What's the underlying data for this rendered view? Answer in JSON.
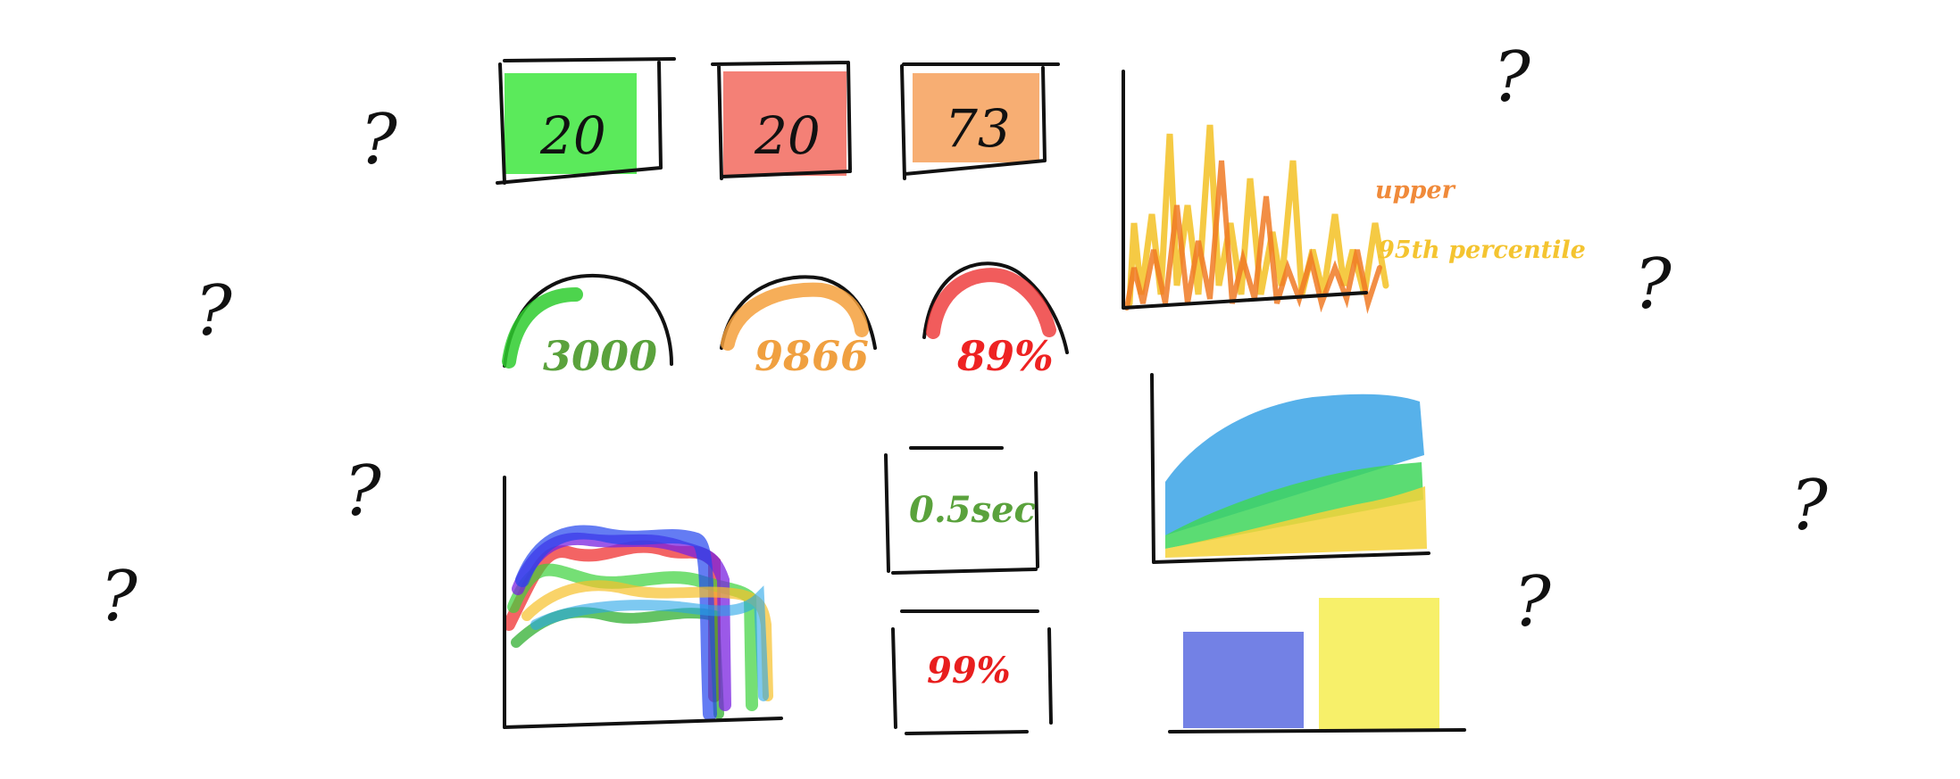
{
  "question_marks": [
    "?",
    "?",
    "?",
    "?",
    "?",
    "?",
    "?",
    "?",
    "?",
    "?"
  ],
  "tiles": [
    {
      "value": "20",
      "color": "#3ee63e"
    },
    {
      "value": "20",
      "color": "#f26a5e"
    },
    {
      "value": "73",
      "color": "#f6a05a"
    }
  ],
  "gauges": [
    {
      "value": "3000",
      "color": "#2ecc2e",
      "text_color": "#5aa23c"
    },
    {
      "value": "9866",
      "color": "#f4a03c",
      "text_color": "#f0a040"
    },
    {
      "value": "89%",
      "color": "#ee3333",
      "text_color": "#ee2222"
    }
  ],
  "stats": [
    {
      "value": "0.5sec",
      "text_color": "#5aa23c"
    },
    {
      "value": "99%",
      "text_color": "#e81e1e"
    }
  ],
  "legend": {
    "upper": {
      "label": "upper",
      "color": "#f08a3a"
    },
    "percentile": {
      "label": "95th percentile",
      "color": "#f4c430"
    }
  },
  "colors": {
    "stroke": "#111111",
    "area_blue": "#3aa3e6",
    "area_green": "#3ed65a",
    "area_yellow": "#f6d23a",
    "bar_blue": "#5a6be0",
    "bar_yellow": "#f6ee5a"
  }
}
